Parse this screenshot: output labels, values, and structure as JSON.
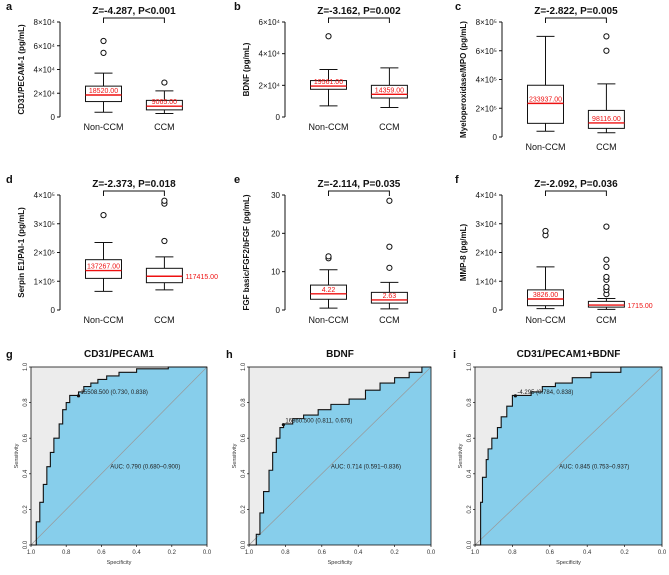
{
  "figure": {
    "boxplots": [
      {
        "label": "a",
        "ylabel": "CD31/PECAM-1 (pg/mL)",
        "stat": "Z=-4.287, P<0.001",
        "ylim": [
          0,
          80000
        ],
        "ticks": [
          {
            "v": 0,
            "t": "0"
          },
          {
            "v": 20000,
            "t": "2×10⁴"
          },
          {
            "v": 40000,
            "t": "4×10⁴"
          },
          {
            "v": 60000,
            "t": "6×10⁴"
          },
          {
            "v": 80000,
            "t": "8×10⁴"
          }
        ],
        "groups": [
          {
            "name": "Non-CCM",
            "whisker_low": 4000,
            "q1": 13000,
            "median": 18520,
            "q3": 26000,
            "whisker_high": 37000,
            "outliers": [
              54000,
              64000
            ],
            "median_label": "18520.00",
            "label_outside": false
          },
          {
            "name": "CCM",
            "whisker_low": 3000,
            "q1": 6000,
            "median": 9065,
            "q3": 14000,
            "whisker_high": 22000,
            "outliers": [
              29000
            ],
            "median_label": "9065.00",
            "label_outside": false
          }
        ]
      },
      {
        "label": "b",
        "ylabel": "BDNF (pg/mL)",
        "stat": "Z=-3.162, P=0.002",
        "ylim": [
          0,
          60000
        ],
        "ticks": [
          {
            "v": 0,
            "t": "0"
          },
          {
            "v": 20000,
            "t": "2×10⁴"
          },
          {
            "v": 40000,
            "t": "4×10⁴"
          },
          {
            "v": 60000,
            "t": "6×10⁴"
          }
        ],
        "groups": [
          {
            "name": "Non-CCM",
            "whisker_low": 7000,
            "q1": 17500,
            "median": 19561,
            "q3": 23000,
            "whisker_high": 30000,
            "outliers": [
              51000
            ],
            "median_label": "19561.00",
            "label_outside": false
          },
          {
            "name": "CCM",
            "whisker_low": 6000,
            "q1": 12000,
            "median": 14359,
            "q3": 20000,
            "whisker_high": 31000,
            "outliers": [],
            "median_label": "14359.00",
            "label_outside": false
          }
        ]
      },
      {
        "label": "c",
        "ylabel": "Myeloperoxidase/MPO (pg/mL)",
        "stat": "Z=-2.822, P=0.005",
        "ylim": [
          0,
          800000
        ],
        "ticks": [
          {
            "v": 0,
            "t": "0"
          },
          {
            "v": 200000,
            "t": "2×10⁵"
          },
          {
            "v": 400000,
            "t": "4×10⁵"
          },
          {
            "v": 600000,
            "t": "6×10⁵"
          },
          {
            "v": 800000,
            "t": "8×10⁵"
          }
        ],
        "groups": [
          {
            "name": "Non-CCM",
            "whisker_low": 40000,
            "q1": 95000,
            "median": 233937,
            "q3": 360000,
            "whisker_high": 700000,
            "outliers": [],
            "median_label": "233937.00",
            "label_outside": false
          },
          {
            "name": "CCM",
            "whisker_low": 30000,
            "q1": 60000,
            "median": 98116,
            "q3": 185000,
            "whisker_high": 370000,
            "outliers": [
              600000,
              700000
            ],
            "median_label": "98116.00",
            "label_outside": false
          }
        ]
      },
      {
        "label": "d",
        "ylabel": "Serpin E1/PAI-1 (pg/mL)",
        "stat": "Z=-2.373, P=0.018",
        "ylim": [
          0,
          400000
        ],
        "ticks": [
          {
            "v": 0,
            "t": "0"
          },
          {
            "v": 100000,
            "t": "1×10⁵"
          },
          {
            "v": 200000,
            "t": "2×10⁵"
          },
          {
            "v": 300000,
            "t": "3×10⁵"
          },
          {
            "v": 400000,
            "t": "4×10⁵"
          }
        ],
        "groups": [
          {
            "name": "Non-CCM",
            "whisker_low": 65000,
            "q1": 110000,
            "median": 137267,
            "q3": 175000,
            "whisker_high": 235000,
            "outliers": [
              330000
            ],
            "median_label": "137267.00",
            "label_outside": false
          },
          {
            "name": "CCM",
            "whisker_low": 70000,
            "q1": 95000,
            "median": 117415,
            "q3": 145000,
            "whisker_high": 185000,
            "outliers": [
              240000,
              370000,
              380000
            ],
            "median_label": "117415.00",
            "label_outside": true
          }
        ]
      },
      {
        "label": "e",
        "ylabel": "FGF basic/FGF2/bFGF (pg/mL)",
        "stat": "Z=-2.114, P=0.035",
        "ylim": [
          0,
          30
        ],
        "ticks": [
          {
            "v": 0,
            "t": "0"
          },
          {
            "v": 10,
            "t": "10"
          },
          {
            "v": 20,
            "t": "20"
          },
          {
            "v": 30,
            "t": "30"
          }
        ],
        "groups": [
          {
            "name": "Non-CCM",
            "whisker_low": 0.5,
            "q1": 2.8,
            "median": 4.22,
            "q3": 6.5,
            "whisker_high": 10.5,
            "outliers": [
              13.5,
              14
            ],
            "median_label": "4.22",
            "label_outside": false
          },
          {
            "name": "CCM",
            "whisker_low": 0.3,
            "q1": 1.8,
            "median": 2.63,
            "q3": 4.6,
            "whisker_high": 7.2,
            "outliers": [
              11,
              16.5,
              28.5
            ],
            "median_label": "2.63",
            "label_outside": false
          }
        ]
      },
      {
        "label": "f",
        "ylabel": "MMP-8 (pg/mL)",
        "stat": "Z=-2.092, P=0.036",
        "ylim": [
          0,
          40000
        ],
        "ticks": [
          {
            "v": 0,
            "t": "0"
          },
          {
            "v": 10000,
            "t": "1×10⁴"
          },
          {
            "v": 20000,
            "t": "2×10⁴"
          },
          {
            "v": 30000,
            "t": "3×10⁴"
          },
          {
            "v": 40000,
            "t": "4×10⁴"
          }
        ],
        "groups": [
          {
            "name": "Non-CCM",
            "whisker_low": 500,
            "q1": 1500,
            "median": 3826,
            "q3": 7000,
            "whisker_high": 15000,
            "outliers": [
              26000,
              27500
            ],
            "median_label": "3826.00",
            "label_outside": false
          },
          {
            "name": "CCM",
            "whisker_low": 200,
            "q1": 1000,
            "median": 1715,
            "q3": 3000,
            "whisker_high": 4000,
            "outliers": [
              5500,
              7000,
              8000,
              10500,
              11500,
              15000,
              17500,
              29000
            ],
            "median_label": "1715.00",
            "label_outside": true
          }
        ]
      }
    ],
    "roc": [
      {
        "label": "g",
        "title": "CD31/PECAM1",
        "threshold_text": "15508.500 (0.730, 0.838)",
        "auc_text": "AUC: 0.790 (0.680–0.900)",
        "threshold_point": [
          0.73,
          0.838
        ],
        "curve": [
          [
            1,
            0
          ],
          [
            0.97,
            0
          ],
          [
            0.97,
            0.13
          ],
          [
            0.95,
            0.13
          ],
          [
            0.95,
            0.24
          ],
          [
            0.93,
            0.24
          ],
          [
            0.93,
            0.34
          ],
          [
            0.91,
            0.34
          ],
          [
            0.91,
            0.44
          ],
          [
            0.89,
            0.44
          ],
          [
            0.89,
            0.52
          ],
          [
            0.87,
            0.52
          ],
          [
            0.87,
            0.6
          ],
          [
            0.84,
            0.6
          ],
          [
            0.84,
            0.68
          ],
          [
            0.82,
            0.68
          ],
          [
            0.82,
            0.76
          ],
          [
            0.8,
            0.76
          ],
          [
            0.8,
            0.8
          ],
          [
            0.78,
            0.8
          ],
          [
            0.78,
            0.84
          ],
          [
            0.73,
            0.84
          ],
          [
            0.73,
            0.86
          ],
          [
            0.7,
            0.86
          ],
          [
            0.7,
            0.89
          ],
          [
            0.66,
            0.89
          ],
          [
            0.66,
            0.91
          ],
          [
            0.62,
            0.91
          ],
          [
            0.62,
            0.93
          ],
          [
            0.57,
            0.93
          ],
          [
            0.57,
            0.95
          ],
          [
            0.5,
            0.95
          ],
          [
            0.5,
            0.97
          ],
          [
            0.4,
            0.97
          ],
          [
            0.4,
            0.99
          ],
          [
            0.22,
            0.99
          ],
          [
            0.22,
            1
          ],
          [
            0,
            1
          ]
        ]
      },
      {
        "label": "h",
        "title": "BDNF",
        "threshold_text": "16860.500 (0.811, 0.676)",
        "auc_text": "AUC: 0.714 (0.591–0.836)",
        "threshold_point": [
          0.811,
          0.676
        ],
        "curve": [
          [
            1,
            0
          ],
          [
            0.96,
            0
          ],
          [
            0.96,
            0.06
          ],
          [
            0.94,
            0.06
          ],
          [
            0.94,
            0.18
          ],
          [
            0.92,
            0.18
          ],
          [
            0.92,
            0.3
          ],
          [
            0.89,
            0.3
          ],
          [
            0.89,
            0.42
          ],
          [
            0.87,
            0.42
          ],
          [
            0.87,
            0.52
          ],
          [
            0.85,
            0.52
          ],
          [
            0.85,
            0.6
          ],
          [
            0.83,
            0.6
          ],
          [
            0.83,
            0.66
          ],
          [
            0.81,
            0.66
          ],
          [
            0.81,
            0.68
          ],
          [
            0.76,
            0.68
          ],
          [
            0.76,
            0.71
          ],
          [
            0.7,
            0.71
          ],
          [
            0.7,
            0.73
          ],
          [
            0.62,
            0.73
          ],
          [
            0.62,
            0.76
          ],
          [
            0.55,
            0.76
          ],
          [
            0.55,
            0.79
          ],
          [
            0.45,
            0.79
          ],
          [
            0.45,
            0.82
          ],
          [
            0.36,
            0.82
          ],
          [
            0.36,
            0.87
          ],
          [
            0.28,
            0.87
          ],
          [
            0.28,
            0.91
          ],
          [
            0.2,
            0.91
          ],
          [
            0.2,
            0.94
          ],
          [
            0.12,
            0.94
          ],
          [
            0.12,
            0.97
          ],
          [
            0.05,
            0.97
          ],
          [
            0.05,
            1
          ],
          [
            0,
            1
          ]
        ]
      },
      {
        "label": "i",
        "title": "CD31/PECAM1+BDNF",
        "threshold_text": "-4.295 (0.784, 0.838)",
        "auc_text": "AUC: 0.845 (0.753–0.937)",
        "threshold_point": [
          0.784,
          0.838
        ],
        "curve": [
          [
            1,
            0
          ],
          [
            0.97,
            0
          ],
          [
            0.97,
            0.24
          ],
          [
            0.96,
            0.24
          ],
          [
            0.96,
            0.38
          ],
          [
            0.94,
            0.38
          ],
          [
            0.94,
            0.48
          ],
          [
            0.93,
            0.48
          ],
          [
            0.93,
            0.54
          ],
          [
            0.91,
            0.54
          ],
          [
            0.91,
            0.6
          ],
          [
            0.88,
            0.6
          ],
          [
            0.88,
            0.66
          ],
          [
            0.86,
            0.66
          ],
          [
            0.86,
            0.72
          ],
          [
            0.83,
            0.72
          ],
          [
            0.83,
            0.78
          ],
          [
            0.8,
            0.78
          ],
          [
            0.8,
            0.84
          ],
          [
            0.7,
            0.84
          ],
          [
            0.7,
            0.86
          ],
          [
            0.64,
            0.86
          ],
          [
            0.64,
            0.89
          ],
          [
            0.57,
            0.89
          ],
          [
            0.57,
            0.91
          ],
          [
            0.48,
            0.91
          ],
          [
            0.48,
            0.94
          ],
          [
            0.38,
            0.94
          ],
          [
            0.38,
            0.97
          ],
          [
            0.22,
            0.97
          ],
          [
            0.22,
            1
          ],
          [
            0,
            1
          ]
        ]
      }
    ],
    "roc_xlabel": "Specificity",
    "roc_ylabel": "Sensitivity",
    "roc_ticks": [
      "0.0",
      "0.2",
      "0.4",
      "0.6",
      "0.8",
      "1.0"
    ],
    "roc_xticks": [
      "1.0",
      "0.8",
      "0.6",
      "0.4",
      "0.2",
      "0.0"
    ]
  },
  "chart_data": [
    {
      "type": "box",
      "title": "a",
      "ylabel": "CD31/PECAM-1 (pg/mL)",
      "categories": [
        "Non-CCM",
        "CCM"
      ],
      "medians": [
        18520.0,
        9065.0
      ],
      "annotation": "Z=-4.287, P<0.001",
      "ylim": [
        0,
        80000
      ]
    },
    {
      "type": "box",
      "title": "b",
      "ylabel": "BDNF (pg/mL)",
      "categories": [
        "Non-CCM",
        "CCM"
      ],
      "medians": [
        19561.0,
        14359.0
      ],
      "annotation": "Z=-3.162, P=0.002",
      "ylim": [
        0,
        60000
      ]
    },
    {
      "type": "box",
      "title": "c",
      "ylabel": "Myeloperoxidase/MPO (pg/mL)",
      "categories": [
        "Non-CCM",
        "CCM"
      ],
      "medians": [
        233937.0,
        98116.0
      ],
      "annotation": "Z=-2.822, P=0.005",
      "ylim": [
        0,
        800000
      ]
    },
    {
      "type": "box",
      "title": "d",
      "ylabel": "Serpin E1/PAI-1 (pg/mL)",
      "categories": [
        "Non-CCM",
        "CCM"
      ],
      "medians": [
        137267.0,
        117415.0
      ],
      "annotation": "Z=-2.373, P=0.018",
      "ylim": [
        0,
        400000
      ]
    },
    {
      "type": "box",
      "title": "e",
      "ylabel": "FGF basic/FGF2/bFGF (pg/mL)",
      "categories": [
        "Non-CCM",
        "CCM"
      ],
      "medians": [
        4.22,
        2.63
      ],
      "annotation": "Z=-2.114, P=0.035",
      "ylim": [
        0,
        30
      ]
    },
    {
      "type": "box",
      "title": "f",
      "ylabel": "MMP-8 (pg/mL)",
      "categories": [
        "Non-CCM",
        "CCM"
      ],
      "medians": [
        3826.0,
        1715.0
      ],
      "annotation": "Z=-2.092, P=0.036",
      "ylim": [
        0,
        40000
      ]
    },
    {
      "type": "line",
      "title": "CD31/PECAM1",
      "xlabel": "Specificity",
      "ylabel": "Sensitivity",
      "auc": 0.79,
      "ci": [
        0.68,
        0.9
      ],
      "threshold": 15508.5,
      "threshold_specificity": 0.73,
      "threshold_sensitivity": 0.838
    },
    {
      "type": "line",
      "title": "BDNF",
      "xlabel": "Specificity",
      "ylabel": "Sensitivity",
      "auc": 0.714,
      "ci": [
        0.591,
        0.836
      ],
      "threshold": 16860.5,
      "threshold_specificity": 0.811,
      "threshold_sensitivity": 0.676
    },
    {
      "type": "line",
      "title": "CD31/PECAM1+BDNF",
      "xlabel": "Specificity",
      "ylabel": "Sensitivity",
      "auc": 0.845,
      "ci": [
        0.753,
        0.937
      ],
      "threshold": -4.295,
      "threshold_specificity": 0.784,
      "threshold_sensitivity": 0.838
    }
  ]
}
